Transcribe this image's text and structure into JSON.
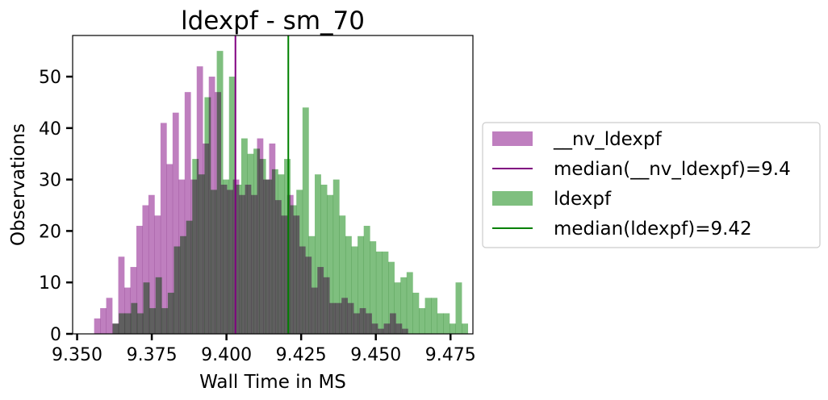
{
  "chart_data": {
    "type": "histogram",
    "title": "ldexpf - sm_70",
    "xlabel": "Wall Time in MS",
    "ylabel": "Observations",
    "xlim": [
      9.3485,
      9.4825
    ],
    "ylim": [
      0,
      58
    ],
    "xticks": [
      {
        "value": 9.35,
        "label": "9.350"
      },
      {
        "value": 9.375,
        "label": "9.375"
      },
      {
        "value": 9.4,
        "label": "9.400"
      },
      {
        "value": 9.425,
        "label": "9.425"
      },
      {
        "value": 9.45,
        "label": "9.450"
      },
      {
        "value": 9.475,
        "label": "9.475"
      }
    ],
    "yticks": [
      {
        "value": 0,
        "label": "0"
      },
      {
        "value": 10,
        "label": "10"
      },
      {
        "value": 20,
        "label": "20"
      },
      {
        "value": 30,
        "label": "30"
      },
      {
        "value": 40,
        "label": "40"
      },
      {
        "value": 50,
        "label": "50"
      }
    ],
    "legend_position": "right, outside plot",
    "series": [
      {
        "name": "__nv_ldexpf",
        "color": "#bf7fbf",
        "bin_start": 9.3557,
        "bin_width": 0.00202,
        "counts": [
          3,
          5,
          7,
          2,
          15,
          9,
          13,
          21,
          25,
          27,
          23,
          41,
          33,
          43,
          30,
          47,
          30,
          52,
          37,
          50,
          47,
          29,
          28,
          30,
          27,
          29,
          27,
          38,
          30,
          37,
          26,
          23,
          27,
          23,
          17,
          15,
          9,
          13,
          11,
          6,
          6,
          7,
          6,
          4,
          5,
          4,
          2,
          1,
          2,
          4,
          2,
          1
        ]
      },
      {
        "name": "ldexpf",
        "color": "#7fbf7f",
        "bin_start": 9.3619,
        "bin_width": 0.00205,
        "counts": [
          2,
          4,
          4,
          6,
          4,
          10,
          5,
          11,
          5,
          8,
          17,
          19,
          22,
          34,
          31,
          46,
          28,
          55,
          30,
          50,
          29,
          38,
          35,
          36,
          34,
          30,
          32,
          31,
          34,
          25,
          28,
          44,
          19,
          31,
          29,
          27,
          30,
          23,
          19,
          17,
          19,
          21,
          18,
          16,
          16,
          14,
          10,
          11,
          12,
          8,
          5,
          7,
          7,
          4,
          4,
          2,
          10,
          2
        ]
      }
    ],
    "medians": [
      {
        "label": "median(__nv_ldexpf)=9.4",
        "value": 9.403,
        "color": "#800080"
      },
      {
        "label": "median(ldexpf)=9.42",
        "value": 9.4207,
        "color": "#008000"
      }
    ]
  }
}
